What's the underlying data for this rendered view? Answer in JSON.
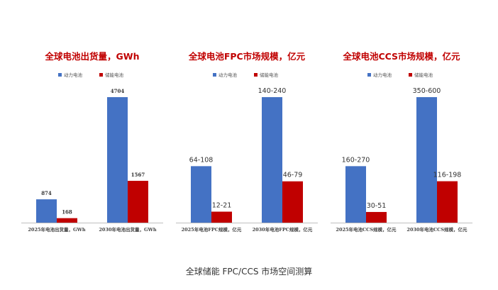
{
  "caption": "全球储能 FPC/CCS 市场空间测算",
  "colors": {
    "power": "#4472C4",
    "storage": "#C00000",
    "title": "#C00000",
    "axis": "#BFBFBF",
    "text": "#333333"
  },
  "chart_data": [
    {
      "type": "bar",
      "title": "全球电池出货量，GWh",
      "legend": {
        "position": "top",
        "entries": [
          "动力电池",
          "储能电池"
        ]
      },
      "categories": [
        "2025年电池出货量，GWh",
        "2030年电池出货量，GWh"
      ],
      "series": [
        {
          "name": "动力电池",
          "values": [
            874,
            4704
          ],
          "labels": [
            "874",
            "4704"
          ]
        },
        {
          "name": "储能电池",
          "values": [
            168,
            1567
          ],
          "labels": [
            "168",
            "1567"
          ]
        }
      ],
      "ylim": [
        0,
        4704
      ],
      "grid": false
    },
    {
      "type": "bar",
      "title": "全球电池FPC市场规模，亿元",
      "legend": {
        "position": "top",
        "entries": [
          "动力电池",
          "储能电池"
        ]
      },
      "categories": [
        "2025年电池FPC规模，亿元",
        "2030年电池FPC规模，亿元"
      ],
      "series": [
        {
          "name": "动力电池",
          "values": [
            108,
            240
          ],
          "labels": [
            "64-108",
            "140-240"
          ]
        },
        {
          "name": "储能电池",
          "values": [
            21,
            79
          ],
          "labels": [
            "12-21",
            "46-79"
          ]
        }
      ],
      "ylim": [
        0,
        240
      ],
      "grid": false
    },
    {
      "type": "bar",
      "title": "全球电池CCS市场规模，亿元",
      "legend": {
        "position": "top",
        "entries": [
          "动力电池",
          "储能电池"
        ]
      },
      "categories": [
        "2025年电池CCS规模，亿元",
        "2030年电池CCS规模，亿元"
      ],
      "series": [
        {
          "name": "动力电池",
          "values": [
            270,
            600
          ],
          "labels": [
            "160-270",
            "350-600"
          ]
        },
        {
          "name": "储能电池",
          "values": [
            51,
            198
          ],
          "labels": [
            "30-51",
            "116-198"
          ]
        }
      ],
      "ylim": [
        0,
        600
      ],
      "grid": false
    }
  ]
}
